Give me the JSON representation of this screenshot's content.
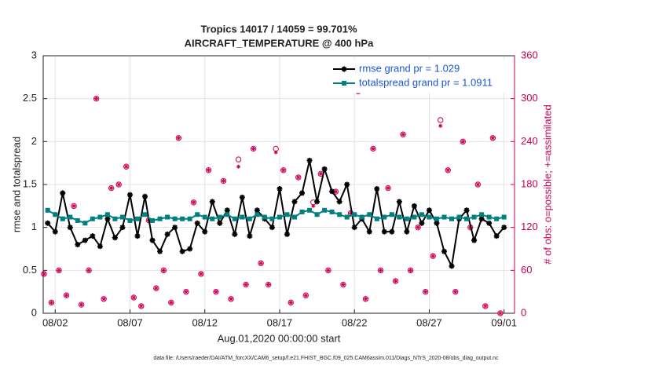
{
  "chart_data": {
    "type": "line",
    "title": "Tropics 14017 / 14059 = 99.701%",
    "subtitle": "AIRCRAFT_TEMPERATURE @ 400 hPa",
    "xlabel": "Aug.01,2020 00:00:00 start",
    "ylabel": "rmse and totalspread",
    "y2label": "# of obs: o=possible; +=assimilated",
    "footer": "data file: /Users/raeder/DAI/ATM_forcXX/CAM6_setup/f.e21.FHIST_BGC.f09_025.CAM6assim.011/Diags_NTrS_2020-08/obs_diag_output.nc",
    "xlim": [
      0.2,
      31.7
    ],
    "xticks": [
      {
        "value": 1,
        "label": "08/02"
      },
      {
        "value": 6,
        "label": "08/07"
      },
      {
        "value": 11,
        "label": "08/12"
      },
      {
        "value": 16,
        "label": "08/17"
      },
      {
        "value": 21,
        "label": "08/22"
      },
      {
        "value": 26,
        "label": "08/27"
      },
      {
        "value": 31,
        "label": "09/01"
      }
    ],
    "ylim": [
      0,
      3
    ],
    "yticks": [
      0,
      0.5,
      1,
      1.5,
      2,
      2.5,
      3
    ],
    "y2lim": [
      0,
      360
    ],
    "y2ticks": [
      0,
      60,
      120,
      180,
      240,
      300,
      360
    ],
    "grid": true,
    "legend": "upper right",
    "x": [
      0.5,
      1,
      1.5,
      2,
      2.5,
      3,
      3.5,
      4,
      4.5,
      5,
      5.5,
      6,
      6.5,
      7,
      7.5,
      8,
      8.5,
      9,
      9.5,
      10,
      10.5,
      11,
      11.5,
      12,
      12.5,
      13,
      13.5,
      14,
      14.5,
      15,
      15.5,
      16,
      16.5,
      17,
      17.5,
      18,
      18.5,
      19,
      19.5,
      20,
      20.5,
      21,
      21.5,
      22,
      22.5,
      23,
      23.5,
      24,
      24.5,
      25,
      25.5,
      26,
      26.5,
      27,
      27.5,
      28,
      28.5,
      29,
      29.5,
      30,
      30.5,
      31
    ],
    "series": [
      {
        "name": "rmse grand pr = 1.029",
        "color": "#000000",
        "marker": "star",
        "values": [
          1.05,
          0.95,
          1.4,
          1.0,
          0.8,
          0.85,
          0.9,
          0.78,
          1.1,
          0.88,
          1.0,
          1.38,
          0.9,
          1.36,
          0.85,
          0.72,
          0.92,
          1.0,
          0.72,
          0.75,
          1.05,
          0.95,
          1.3,
          1.05,
          1.2,
          0.92,
          1.35,
          0.9,
          1.2,
          1.1,
          1.0,
          1.45,
          0.92,
          1.3,
          1.4,
          1.78,
          1.3,
          1.68,
          1.42,
          1.3,
          1.5,
          1.0,
          1.1,
          0.95,
          1.45,
          0.95,
          0.95,
          1.3,
          0.95,
          1.25,
          1.05,
          1.2,
          1.05,
          0.72,
          0.55,
          1.1,
          1.2,
          0.85,
          1.1,
          1.05,
          0.9,
          1.0
        ]
      },
      {
        "name": "totalspread grand pr = 1.0911",
        "color": "#008080",
        "marker": "square",
        "values": [
          1.2,
          1.15,
          1.1,
          1.12,
          1.08,
          1.05,
          1.1,
          1.12,
          1.15,
          1.1,
          1.12,
          1.08,
          1.1,
          1.15,
          1.08,
          1.1,
          1.12,
          1.1,
          1.1,
          1.1,
          1.15,
          1.12,
          1.1,
          1.12,
          1.15,
          1.1,
          1.12,
          1.1,
          1.15,
          1.12,
          1.1,
          1.12,
          1.15,
          1.12,
          1.18,
          1.2,
          1.15,
          1.2,
          1.18,
          1.15,
          1.12,
          1.15,
          1.12,
          1.15,
          1.1,
          1.12,
          1.15,
          1.12,
          1.1,
          1.12,
          1.15,
          1.12,
          1.1,
          1.12,
          1.1,
          1.12,
          1.1,
          1.12,
          1.15,
          1.12,
          1.1,
          1.12
        ]
      }
    ],
    "obs_x": [
      0.25,
      0.75,
      1.25,
      1.75,
      2.25,
      2.75,
      3.25,
      3.75,
      4.25,
      4.75,
      5.25,
      5.75,
      6.25,
      6.75,
      7.25,
      7.75,
      8.25,
      8.75,
      9.25,
      9.75,
      10.25,
      10.75,
      11.25,
      11.75,
      12.25,
      12.75,
      13.25,
      13.75,
      14.25,
      14.75,
      15.25,
      15.75,
      16.25,
      16.75,
      17.25,
      17.75,
      18.25,
      18.75,
      19.25,
      19.75,
      20.25,
      20.75,
      21.25,
      21.75,
      22.25,
      22.75,
      23.25,
      23.75,
      24.25,
      24.75,
      25.25,
      25.75,
      26.25,
      26.75,
      27.25,
      27.75,
      28.25,
      28.75,
      29.25,
      29.75,
      30.25,
      30.75
    ],
    "obs_series": [
      {
        "axis": "y2",
        "color": "#cc0055",
        "marker": "circle",
        "values": [
          55,
          15,
          60,
          25,
          150,
          12,
          60,
          300,
          20,
          175,
          180,
          205,
          22,
          10,
          130,
          35,
          60,
          15,
          245,
          30,
          155,
          55,
          200,
          30,
          185,
          20,
          215,
          40,
          230,
          70,
          40,
          230,
          200,
          15,
          190,
          25,
          155,
          195,
          60,
          170,
          40,
          140,
          310,
          20,
          230,
          60,
          175,
          45,
          250,
          60,
          120,
          30,
          80,
          270,
          200,
          30,
          240,
          120,
          180,
          10,
          245,
          0
        ]
      },
      {
        "axis": "y2",
        "color": "#cc0055",
        "marker": "plus",
        "values": [
          55,
          15,
          60,
          25,
          150,
          12,
          60,
          300,
          20,
          175,
          180,
          205,
          22,
          10,
          130,
          35,
          60,
          15,
          245,
          30,
          155,
          55,
          200,
          30,
          185,
          20,
          205,
          40,
          230,
          70,
          40,
          225,
          200,
          15,
          190,
          25,
          150,
          195,
          60,
          170,
          40,
          140,
          310,
          20,
          230,
          60,
          175,
          45,
          250,
          60,
          120,
          30,
          80,
          262,
          200,
          30,
          240,
          120,
          180,
          10,
          245,
          0
        ]
      }
    ]
  }
}
